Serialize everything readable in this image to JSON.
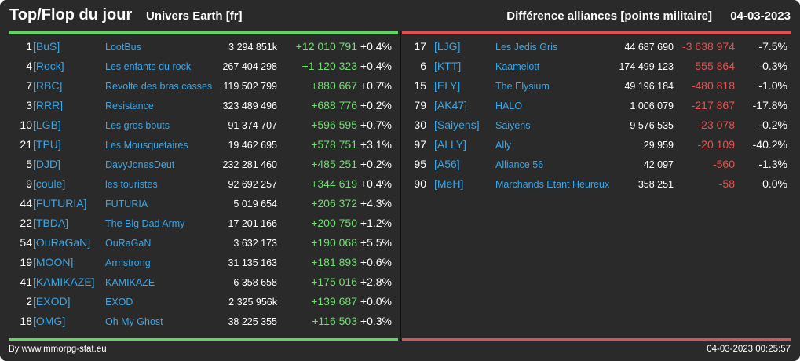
{
  "header": {
    "title": "Top/Flop du jour",
    "universe": "Univers Earth [fr]",
    "subtitle": "Différence alliances [points militaire]",
    "date": "04-03-2023"
  },
  "colors": {
    "background": "#2a2a2a",
    "top_accent": "#5fd65f",
    "flop_accent": "#e05050",
    "alliance_text": "#3aa6e6"
  },
  "top": [
    {
      "rank": "1",
      "tag": "[BuS]",
      "name": "LootBus",
      "points": "3 294 851k",
      "diff": "+12 010 791",
      "pct": "+0.4%"
    },
    {
      "rank": "4",
      "tag": "[Rock]",
      "name": "Les enfants du rock",
      "points": "267 404 298",
      "diff": "+1 120 323",
      "pct": "+0.4%"
    },
    {
      "rank": "7",
      "tag": "[RBC]",
      "name": "Revolte des bras casses",
      "points": "119 502 799",
      "diff": "+880 667",
      "pct": "+0.7%"
    },
    {
      "rank": "3",
      "tag": "[RRR]",
      "name": "Resistance",
      "points": "323 489 496",
      "diff": "+688 776",
      "pct": "+0.2%"
    },
    {
      "rank": "10",
      "tag": "[LGB]",
      "name": "Les gros bouts",
      "points": "91 374 707",
      "diff": "+596 595",
      "pct": "+0.7%"
    },
    {
      "rank": "21",
      "tag": "[TPU]",
      "name": "Les Mousquetaires",
      "points": "19 462 695",
      "diff": "+578 751",
      "pct": "+3.1%"
    },
    {
      "rank": "5",
      "tag": "[DJD]",
      "name": "DavyJonesDeut",
      "points": "232 281 460",
      "diff": "+485 251",
      "pct": "+0.2%"
    },
    {
      "rank": "9",
      "tag": "[coule]",
      "name": "les touristes",
      "points": "92 692 257",
      "diff": "+344 619",
      "pct": "+0.4%"
    },
    {
      "rank": "44",
      "tag": "[FUTURIA]",
      "name": "FUTURIA",
      "points": "5 019 654",
      "diff": "+206 372",
      "pct": "+4.3%"
    },
    {
      "rank": "22",
      "tag": "[TBDA]",
      "name": "The Big Dad Army",
      "points": "17 201 166",
      "diff": "+200 750",
      "pct": "+1.2%"
    },
    {
      "rank": "54",
      "tag": "[OuRaGaN]",
      "name": "OuRaGaN",
      "points": "3 632 173",
      "diff": "+190 068",
      "pct": "+5.5%"
    },
    {
      "rank": "19",
      "tag": "[MOON]",
      "name": "Armstrong",
      "points": "31 135 163",
      "diff": "+181 893",
      "pct": "+0.6%"
    },
    {
      "rank": "41",
      "tag": "[KAMIKAZE]",
      "name": "KAMIKAZE",
      "points": "6 358 658",
      "diff": "+175 016",
      "pct": "+2.8%"
    },
    {
      "rank": "2",
      "tag": "[EXOD]",
      "name": "EXOD",
      "points": "2 325 956k",
      "diff": "+139 687",
      "pct": "+0.0%"
    },
    {
      "rank": "18",
      "tag": "[OMG]",
      "name": "Oh My Ghost",
      "points": "38 225 355",
      "diff": "+116 503",
      "pct": "+0.3%"
    }
  ],
  "flop": [
    {
      "rank": "17",
      "tag": "[LJG]",
      "name": "Les Jedis Gris",
      "points": "44 687 690",
      "diff": "-3 638 974",
      "pct": "-7.5%"
    },
    {
      "rank": "6",
      "tag": "[KTT]",
      "name": "Kaamelott",
      "points": "174 499 123",
      "diff": "-555 864",
      "pct": "-0.3%"
    },
    {
      "rank": "15",
      "tag": "[ELY]",
      "name": "The Elysium",
      "points": "49 196 184",
      "diff": "-480 818",
      "pct": "-1.0%"
    },
    {
      "rank": "79",
      "tag": "[AK47]",
      "name": "HALO",
      "points": "1 006 079",
      "diff": "-217 867",
      "pct": "-17.8%"
    },
    {
      "rank": "30",
      "tag": "[Saiyens]",
      "name": "Saiyens",
      "points": "9 576 535",
      "diff": "-23 078",
      "pct": "-0.2%"
    },
    {
      "rank": "97",
      "tag": "[ALLY]",
      "name": "Ally",
      "points": "29 959",
      "diff": "-20 109",
      "pct": "-40.2%"
    },
    {
      "rank": "95",
      "tag": "[A56]",
      "name": "Alliance 56",
      "points": "42 097",
      "diff": "-560",
      "pct": "-1.3%"
    },
    {
      "rank": "90",
      "tag": "[MeH]",
      "name": "Marchands Etant Heureux",
      "points": "358 251",
      "diff": "-58",
      "pct": "0.0%"
    }
  ],
  "footer": {
    "source": "By www.mmorpg-stat.eu",
    "timestamp": "04-03-2023 00:25:57"
  }
}
